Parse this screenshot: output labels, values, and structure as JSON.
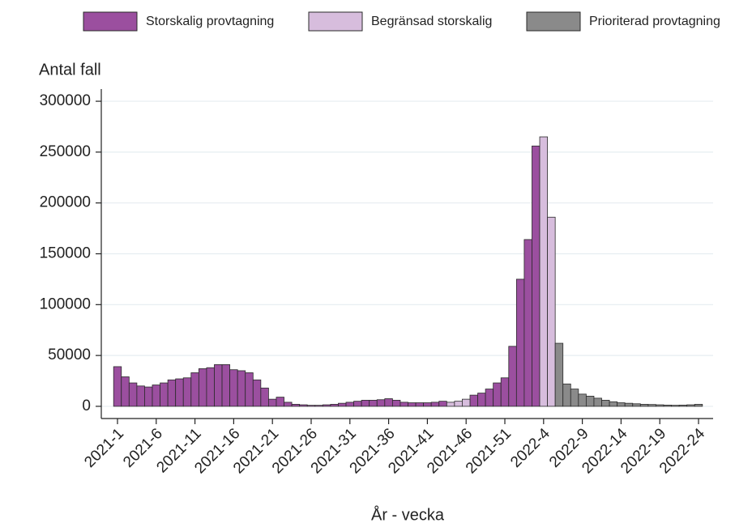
{
  "chart_data": {
    "type": "bar",
    "y_label": "Antal fall",
    "x_label": "År - vecka",
    "categories": [
      "2021-1",
      null,
      null,
      null,
      null,
      "2021-6",
      null,
      null,
      null,
      null,
      "2021-11",
      null,
      null,
      null,
      null,
      "2021-16",
      null,
      null,
      null,
      null,
      "2021-21",
      null,
      null,
      null,
      null,
      "2021-26",
      null,
      null,
      null,
      null,
      "2021-31",
      null,
      null,
      null,
      null,
      "2021-36",
      null,
      null,
      null,
      null,
      "2021-41",
      null,
      null,
      null,
      null,
      "2021-46",
      null,
      null,
      null,
      null,
      "2021-51",
      null,
      null,
      null,
      null,
      "2022-4",
      null,
      null,
      null,
      null,
      "2022-9",
      null,
      null,
      null,
      null,
      "2022-14",
      null,
      null,
      null,
      null,
      "2022-19",
      null,
      null,
      null,
      null,
      "2022-24"
    ],
    "series": [
      {
        "name": "Storskalig provtagning",
        "color": "#9b4f9f",
        "values": [
          39000,
          29000,
          23000,
          20000,
          19000,
          21000,
          23000,
          26000,
          27000,
          28000,
          33000,
          37000,
          38000,
          41000,
          41000,
          36000,
          35000,
          33000,
          26000,
          18000,
          7000,
          9000,
          4000,
          2000,
          1500,
          1000,
          1000,
          1500,
          2000,
          3000,
          4000,
          5000,
          6000,
          6000,
          6500,
          7500,
          6000,
          4000,
          3500,
          3500,
          3500,
          4000,
          5000,
          null,
          null,
          null,
          11000,
          13000,
          17000,
          23000,
          28000,
          59000,
          125000,
          164000,
          256000,
          null,
          null,
          null,
          null,
          null,
          null,
          null,
          null,
          null,
          null,
          null,
          null,
          null,
          null,
          null,
          null,
          null,
          null,
          null,
          null,
          null
        ]
      },
      {
        "name": "Begränsad storskalig",
        "color": "#d7bddd",
        "values": [
          null,
          null,
          null,
          null,
          null,
          null,
          null,
          null,
          null,
          null,
          null,
          null,
          null,
          null,
          null,
          null,
          null,
          null,
          null,
          null,
          null,
          null,
          null,
          null,
          null,
          null,
          null,
          null,
          null,
          null,
          null,
          null,
          null,
          null,
          null,
          null,
          null,
          null,
          null,
          null,
          null,
          null,
          null,
          4000,
          5000,
          7000,
          null,
          null,
          null,
          null,
          null,
          null,
          null,
          null,
          null,
          265000,
          186000,
          null,
          null,
          null,
          null,
          null,
          null,
          null,
          null,
          null,
          null,
          null,
          null,
          null,
          null,
          null,
          null,
          null,
          null,
          null
        ]
      },
      {
        "name": "Prioriterad provtagning",
        "color": "#8a8a8a",
        "values": [
          null,
          null,
          null,
          null,
          null,
          null,
          null,
          null,
          null,
          null,
          null,
          null,
          null,
          null,
          null,
          null,
          null,
          null,
          null,
          null,
          null,
          null,
          null,
          null,
          null,
          null,
          null,
          null,
          null,
          null,
          null,
          null,
          null,
          null,
          null,
          null,
          null,
          null,
          null,
          null,
          null,
          null,
          null,
          null,
          null,
          null,
          null,
          null,
          null,
          null,
          null,
          null,
          null,
          null,
          null,
          null,
          null,
          62000,
          22000,
          17000,
          12000,
          10000,
          8000,
          6000,
          4500,
          3500,
          3000,
          2500,
          2000,
          1800,
          1500,
          1200,
          1000,
          1200,
          1500,
          2000
        ]
      }
    ],
    "ylim": [
      -12000,
      312000
    ],
    "yticks": [
      0,
      50000,
      100000,
      150000,
      200000,
      250000,
      300000
    ],
    "grid": true
  }
}
